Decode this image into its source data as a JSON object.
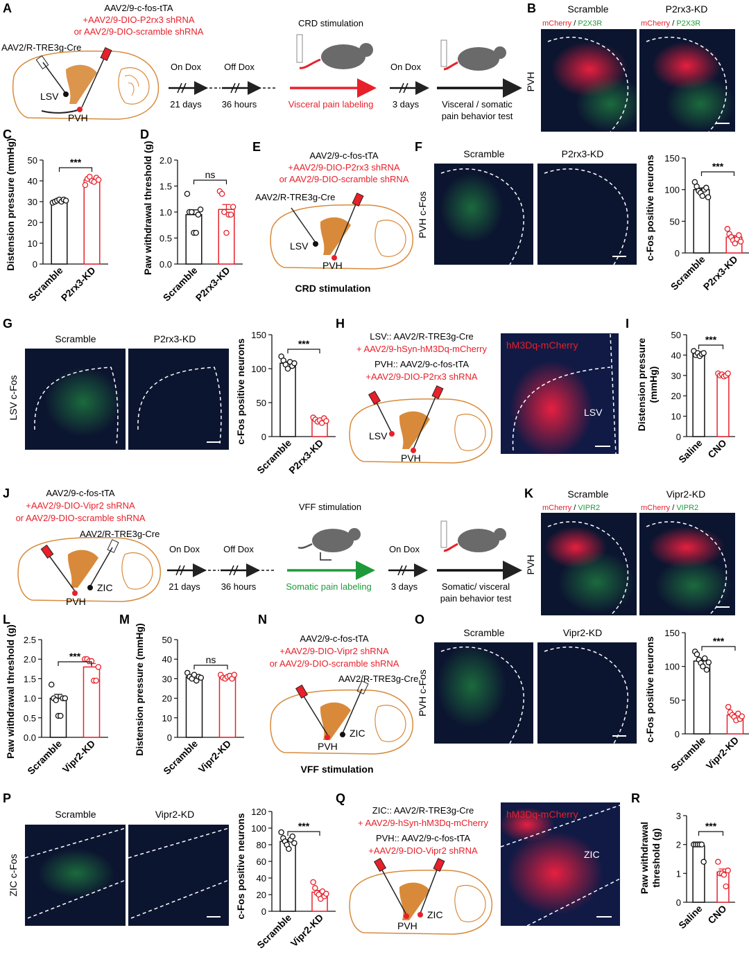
{
  "colors": {
    "black": "#111111",
    "red": "#e8202a",
    "green": "#1f9a3a",
    "brain": "#d88a3a",
    "brain_dark": "#b5651d",
    "micro_bg": "#0c1530"
  },
  "panels": {
    "A": {
      "letter": "A",
      "virus_line1": "AAV2/9-c-fos-tTA",
      "virus_line2": "+AAV2/9-DIO-P2rx3 shRNA",
      "virus_line3": "or AAV2/9-DIO-scramble shRNA",
      "retro": "AAV2/R-TRE3g-Cre",
      "region1": "LSV",
      "region2": "PVH",
      "stim_title": "CRD stimulation",
      "on_dox": "On Dox",
      "off_dox": "Off Dox",
      "on_dox2": "On Dox",
      "days21": "21 days",
      "hours36": "36 hours",
      "days3": "3 days",
      "labeling": "Visceral pain labeling",
      "test_line1": "Visceral / somatic",
      "test_line2": "pain behavior test"
    },
    "B": {
      "letter": "B",
      "scramble": "Scramble",
      "kd": "P2rx3-KD",
      "stain1": "mCherry",
      "sep": " / ",
      "stain2": "P2X3R",
      "region": "PVH"
    },
    "C": {
      "letter": "C",
      "sig": "***",
      "ylabel": "Distension pressure (mmHg)",
      "ticks": [
        "0",
        "10",
        "20",
        "30",
        "40",
        "50"
      ],
      "cats": [
        "Scramble",
        "P2rx3-KD"
      ]
    },
    "D": {
      "letter": "D",
      "sig": "ns",
      "ylabel": "Paw withdrawal threshold (g)",
      "ticks": [
        "0.0",
        "0.5",
        "1.0",
        "1.5",
        "2.0"
      ],
      "cats": [
        "Scramble",
        "P2rx3-KD"
      ]
    },
    "E": {
      "letter": "E",
      "virus_line1": "AAV2/9-c-fos-tTA",
      "virus_line2": "+AAV2/9-DIO-P2rx3 shRNA",
      "virus_line3": "or AAV2/9-DIO-scramble shRNA",
      "retro": "AAV2/R-TRE3g-Cre",
      "region1": "LSV",
      "region2": "PVH",
      "caption": "CRD stimulation"
    },
    "F": {
      "letter": "F",
      "scramble": "Scramble",
      "kd": "P2rx3-KD",
      "region": "PVH c-Fos",
      "sig": "***",
      "ylabel": "c-Fos positive neurons",
      "ticks": [
        "0",
        "50",
        "100",
        "150"
      ],
      "cats": [
        "Scramble",
        "P2rx3-KD"
      ]
    },
    "G": {
      "letter": "G",
      "scramble": "Scramble",
      "kd": "P2rx3-KD",
      "region": "LSV c-Fos",
      "sig": "***",
      "ylabel": "c-Fos positive neurons",
      "ticks": [
        "0",
        "50",
        "100",
        "150"
      ],
      "cats": [
        "Scramble",
        "P2rx3-KD"
      ]
    },
    "H": {
      "letter": "H",
      "line1": "LSV:: AAV2/R-TRE3g-Cre",
      "line2": "+ AAV2/9-hSyn-hM3Dq-mCherry",
      "line3": "PVH:: AAV2/9-c-fos-tTA",
      "line4": "+AAV2/9-DIO-P2rx3 shRNA",
      "region1": "LSV",
      "region2": "PVH",
      "micro_label": "hM3Dq-mCherry",
      "micro_region": "LSV"
    },
    "I": {
      "letter": "I",
      "sig": "***",
      "ylabel_line1": "Distension pressure",
      "ylabel_line2": "(mmHg)",
      "ticks": [
        "0",
        "10",
        "20",
        "30",
        "40",
        "50"
      ],
      "cats": [
        "Saline",
        "CNO"
      ]
    },
    "J": {
      "letter": "J",
      "virus_line1": "AAV2/9-c-fos-tTA",
      "virus_line2": "+AAV2/9-DIO-Vipr2 shRNA",
      "virus_line3": "or AAV2/9-DIO-scramble shRNA",
      "retro": "AAV2/R-TRE3g-Cre",
      "region1": "PVH",
      "region2": "ZIC",
      "stim_title": "VFF stimulation",
      "on_dox": "On Dox",
      "off_dox": "Off Dox",
      "on_dox2": "On Dox",
      "days21": "21 days",
      "hours36": "36 hours",
      "days3": "3 days",
      "labeling": "Somatic pain labeling",
      "test_line1": "Somatic/ visceral",
      "test_line2": "pain behavior test"
    },
    "K": {
      "letter": "K",
      "scramble": "Scramble",
      "kd": "Vipr2-KD",
      "stain1": "mCherry",
      "sep": " / ",
      "stain2": "VIPR2",
      "region": "PVH"
    },
    "L": {
      "letter": "L",
      "sig": "***",
      "ylabel": "Paw withdrawal threshold (g)",
      "ticks": [
        "0.0",
        "0.5",
        "1.0",
        "1.5",
        "2.0",
        "2.5"
      ],
      "cats": [
        "Scramble",
        "Vipr2-KD"
      ]
    },
    "M": {
      "letter": "M",
      "sig": "ns",
      "ylabel": "Distension pressure (mmHg)",
      "ticks": [
        "0",
        "10",
        "20",
        "30",
        "40",
        "50"
      ],
      "cats": [
        "Scramble",
        "Vipr2-KD"
      ]
    },
    "N": {
      "letter": "N",
      "virus_line1": "AAV2/9-c-fos-tTA",
      "virus_line2": "+AAV2/9-DIO-Vipr2 shRNA",
      "virus_line3": "or AAV2/9-DIO-scramble shRNA",
      "retro": "AAV2/R-TRE3g-Cre",
      "region1": "PVH",
      "region2": "ZIC",
      "caption": "VFF stimulation"
    },
    "O": {
      "letter": "O",
      "scramble": "Scramble",
      "kd": "Vipr2-KD",
      "region": "PVH c-Fos",
      "sig": "***",
      "ylabel": "c-Fos positive neurons",
      "ticks": [
        "0",
        "50",
        "100",
        "150"
      ],
      "cats": [
        "Scramble",
        "Vipr2-KD"
      ]
    },
    "P": {
      "letter": "P",
      "scramble": "Scramble",
      "kd": "Vipr2-KD",
      "region": "ZIC c-Fos",
      "sig": "***",
      "ylabel": "c-Fos positive neurons",
      "ticks": [
        "0",
        "20",
        "40",
        "60",
        "80",
        "100",
        "120"
      ],
      "cats": [
        "Scramble",
        "Vipr2-KD"
      ]
    },
    "Q": {
      "letter": "Q",
      "line1": "ZIC:: AAV2/R-TRE3g-Cre",
      "line2": "+ AAV2/9-hSyn-hM3Dq-mCherry",
      "line3": "PVH:: AAV2/9-c-fos-tTA",
      "line4": "+AAV2/9-DIO-Vipr2 shRNA",
      "region1": "PVH",
      "region2": "ZIC",
      "micro_label": "hM3Dq-mCherry",
      "micro_region": "ZIC"
    },
    "R": {
      "letter": "R",
      "sig": "***",
      "ylabel_line1": "Paw withdrawal",
      "ylabel_line2": "threshold (g)",
      "ticks": [
        "0",
        "1",
        "2",
        "3"
      ],
      "cats": [
        "Saline",
        "CNO"
      ]
    }
  },
  "chart_data": [
    {
      "panel": "C",
      "type": "bar",
      "categories": [
        "Scramble",
        "P2rx3-KD"
      ],
      "values": [
        30.5,
        40.5
      ],
      "points": [
        [
          29.5,
          30,
          30.5,
          31,
          30,
          31,
          30.5
        ],
        [
          38,
          41,
          42,
          40,
          39.5,
          41.5,
          40.5
        ]
      ],
      "ylim": [
        0,
        50
      ],
      "colors": [
        "#111111",
        "#e8202a"
      ]
    },
    {
      "panel": "D",
      "type": "bar",
      "categories": [
        "Scramble",
        "P2rx3-KD"
      ],
      "values": [
        0.95,
        1.05
      ],
      "points": [
        [
          1.35,
          1.0,
          1.0,
          0.6,
          0.6,
          0.95,
          1.05
        ],
        [
          1.4,
          1.35,
          1.0,
          0.6,
          0.95,
          0.95,
          1.1
        ]
      ],
      "ylim": [
        0,
        2.0
      ],
      "colors": [
        "#111111",
        "#e8202a"
      ]
    },
    {
      "panel": "F",
      "type": "bar",
      "categories": [
        "Scramble",
        "P2rx3-KD"
      ],
      "values": [
        100,
        25
      ],
      "points": [
        [
          112,
          105,
          98,
          95,
          90,
          100,
          103,
          88
        ],
        [
          38,
          30,
          25,
          20,
          15,
          22,
          28,
          18
        ]
      ],
      "ylim": [
        0,
        150
      ],
      "colors": [
        "#111111",
        "#e8202a"
      ]
    },
    {
      "panel": "G",
      "type": "bar",
      "categories": [
        "Scramble",
        "P2rx3-KD"
      ],
      "values": [
        108,
        25
      ],
      "points": [
        [
          118,
          112,
          106,
          100,
          110,
          104,
          108
        ],
        [
          28,
          25,
          22,
          24,
          20,
          27,
          23
        ]
      ],
      "ylim": [
        0,
        150
      ],
      "colors": [
        "#111111",
        "#e8202a"
      ]
    },
    {
      "panel": "I",
      "type": "bar",
      "categories": [
        "Saline",
        "CNO"
      ],
      "values": [
        40.5,
        30.5
      ],
      "points": [
        [
          42,
          40,
          41,
          39.5,
          40.5,
          41
        ],
        [
          31,
          30,
          30.5,
          29.5,
          30,
          31
        ]
      ],
      "ylim": [
        0,
        50
      ],
      "colors": [
        "#111111",
        "#e8202a"
      ]
    },
    {
      "panel": "L",
      "type": "bar",
      "categories": [
        "Scramble",
        "Vipr2-KD"
      ],
      "values": [
        1.0,
        1.8
      ],
      "points": [
        [
          1.35,
          1.0,
          0.95,
          0.55,
          0.55,
          1.0,
          1.0
        ],
        [
          2.0,
          2.0,
          1.95,
          1.95,
          1.45,
          1.45,
          1.8
        ]
      ],
      "ylim": [
        0,
        2.5
      ],
      "colors": [
        "#111111",
        "#e8202a"
      ]
    },
    {
      "panel": "M",
      "type": "bar",
      "categories": [
        "Scramble",
        "Vipr2-KD"
      ],
      "values": [
        31,
        31
      ],
      "points": [
        [
          33,
          31,
          30,
          32,
          29,
          31,
          30.5
        ],
        [
          32,
          30.5,
          30,
          31,
          31.5,
          30,
          32
        ]
      ],
      "ylim": [
        0,
        50
      ],
      "colors": [
        "#111111",
        "#e8202a"
      ]
    },
    {
      "panel": "O",
      "type": "bar",
      "categories": [
        "Scramble",
        "Vipr2-KD"
      ],
      "values": [
        108,
        28
      ],
      "points": [
        [
          122,
          118,
          110,
          105,
          100,
          112,
          95,
          106
        ],
        [
          40,
          32,
          28,
          25,
          20,
          30,
          22,
          26
        ]
      ],
      "ylim": [
        0,
        150
      ],
      "colors": [
        "#111111",
        "#e8202a"
      ]
    },
    {
      "panel": "P",
      "type": "bar",
      "categories": [
        "Scramble",
        "Vipr2-KD"
      ],
      "values": [
        84,
        23
      ],
      "points": [
        [
          95,
          88,
          84,
          80,
          75,
          86,
          90,
          82
        ],
        [
          35,
          28,
          22,
          20,
          15,
          24,
          18,
          21
        ]
      ],
      "ylim": [
        0,
        120
      ],
      "colors": [
        "#111111",
        "#e8202a"
      ]
    },
    {
      "panel": "R",
      "type": "bar",
      "categories": [
        "Saline",
        "CNO"
      ],
      "values": [
        1.95,
        1.05
      ],
      "points": [
        [
          2.0,
          2.0,
          2.0,
          2.0,
          2.0,
          1.4
        ],
        [
          1.4,
          1.0,
          1.0,
          0.95,
          0.55,
          1.1
        ]
      ],
      "ylim": [
        0,
        3
      ],
      "colors": [
        "#111111",
        "#e8202a"
      ]
    }
  ]
}
